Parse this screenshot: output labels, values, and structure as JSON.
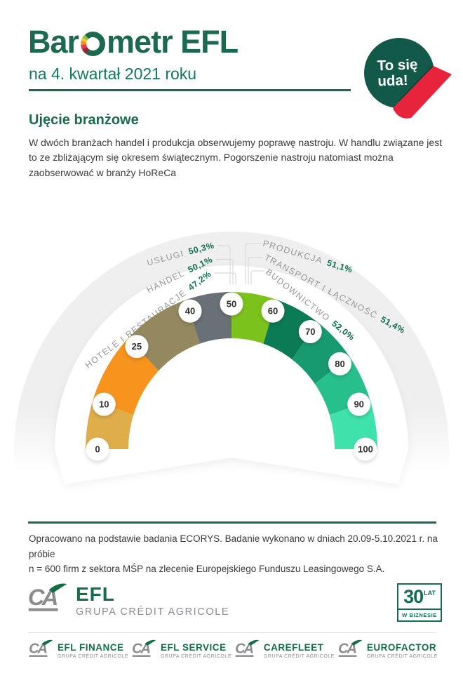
{
  "header": {
    "title_prefix": "Bar",
    "title_suffix": "metr EFL",
    "subtitle": "na 4. kwartał 2021 roku",
    "badge_line1": "To się",
    "badge_line2": "uda!"
  },
  "section": {
    "heading": "Ujęcie branżowe",
    "body": "W dwóch branżach handel i produkcja obserwujemy poprawę nastroju. W handlu związane jest to ze zbliżającym się okresem świątecznym. Pogorszenie nastroju natomiast można zaobserwować w branży HoReCa"
  },
  "chart_data": {
    "type": "gauge",
    "min": 0,
    "max": 100,
    "angle_span_deg": 180,
    "tick_values": [
      0,
      10,
      25,
      40,
      50,
      60,
      70,
      80,
      90,
      100
    ],
    "segments": [
      {
        "from": 0,
        "to": 10,
        "color": "#dfae4b"
      },
      {
        "from": 10,
        "to": 25,
        "color": "#f7941e"
      },
      {
        "from": 25,
        "to": 40,
        "color": "#93885e"
      },
      {
        "from": 40,
        "to": 50,
        "color": "#697076"
      },
      {
        "from": 50,
        "to": 60,
        "color": "#7cc21d"
      },
      {
        "from": 60,
        "to": 70,
        "color": "#0b7b55"
      },
      {
        "from": 70,
        "to": 80,
        "color": "#189a70"
      },
      {
        "from": 80,
        "to": 90,
        "color": "#27c08c"
      },
      {
        "from": 90,
        "to": 100,
        "color": "#40e2ab"
      }
    ],
    "series": [
      {
        "name": "USŁUGI",
        "value": 50.3,
        "value_label": "50,3%",
        "side": "left"
      },
      {
        "name": "HANDEL",
        "value": 50.1,
        "value_label": "50,1%",
        "side": "left"
      },
      {
        "name": "HOTELE I RESTAURACJE",
        "value": 47.2,
        "value_label": "47,2%",
        "side": "left"
      },
      {
        "name": "PRODUKCJA",
        "value": 51.1,
        "value_label": "51,1%",
        "side": "right"
      },
      {
        "name": "TRANSPORT I ŁĄCZNOŚĆ",
        "value": 51.4,
        "value_label": "51,4%",
        "side": "right"
      },
      {
        "name": "BUDOWNICTWO",
        "value": 52.0,
        "value_label": "52,0%",
        "side": "right"
      }
    ],
    "label_color": "#939597",
    "value_color": "#0d6e50",
    "tick_text_color": "#2f2f2f",
    "dome_color": "#efefef",
    "callout_color": "#d9d9d9"
  },
  "footer": {
    "note_line1": "Opracowano na podstawie badania ECORYS. Badanie wykonano w dniach 20.09-5.10.2021 r. na próbie",
    "note_line2": "n = 600 firm z sektora MŚP na zlecenie Europejskiego Funduszu Leasingowego S.A."
  },
  "logos": {
    "ca_monogram": "CA",
    "main": {
      "name": "EFL",
      "sub": "GRUPA CRÉDIT AGRICOLE"
    },
    "anniversary": {
      "number": "30",
      "unit": "LAT",
      "subtitle": "W BIZNESIE"
    },
    "partners": [
      {
        "name": "EFL FINANCE",
        "sub": "GRUPA CRÉDIT AGRICOLE"
      },
      {
        "name": "EFL SERVICE",
        "sub": "GRUPA CRÉDIT AGRICOLE"
      },
      {
        "name": "CAREFLEET",
        "sub": "GRUPA CRÉDIT AGRICOLE"
      },
      {
        "name": "EUROFACTOR",
        "sub": "GRUPA CRÉDIT AGRICOLE"
      }
    ]
  },
  "colors": {
    "brand_dark_green": "#1b6a50",
    "brand_green": "#0f7a5c",
    "badge_green": "#13594a",
    "accent_red": "#e8243d",
    "logo_gray": "#8a8d8f",
    "logo_green": "#156e47",
    "body_text": "#3a3a3a"
  }
}
